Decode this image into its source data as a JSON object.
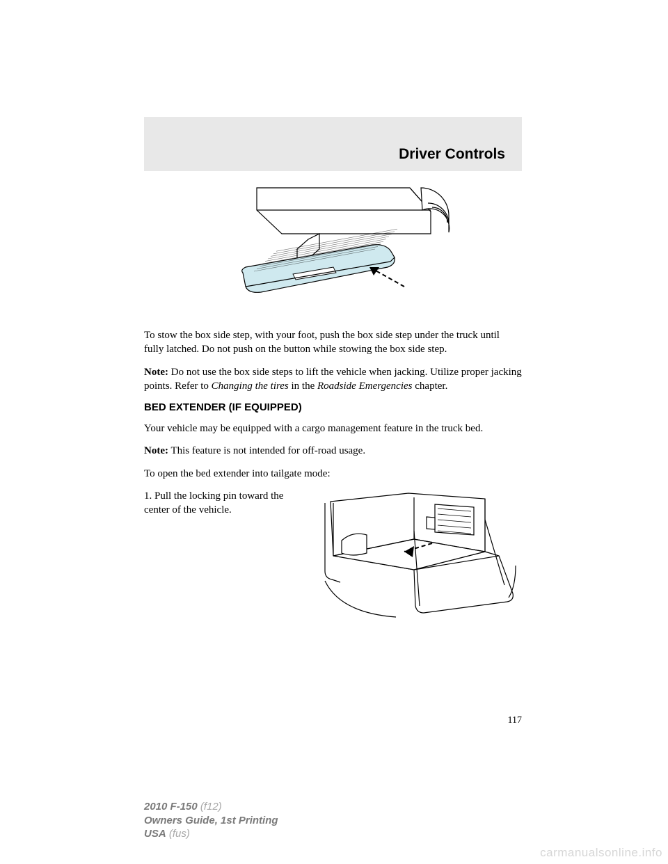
{
  "header": {
    "title": "Driver Controls"
  },
  "body": {
    "p1": "To stow the box side step, with your foot, push the box side step under the truck until fully latched. Do not push on the button while stowing the box side step.",
    "note1_label": "Note:",
    "note1_text": " Do not use the box side steps to lift the vehicle when jacking. Utilize proper jacking points. Refer to ",
    "note1_ref1": "Changing the tires",
    "note1_mid": " in the ",
    "note1_ref2": "Roadside Emergencies",
    "note1_end": " chapter.",
    "section_head": "BED EXTENDER (IF EQUIPPED)",
    "p2": "Your vehicle may be equipped with a cargo management feature in the truck bed.",
    "note2_label": "Note:",
    "note2_text": " This feature is not intended for off-road usage.",
    "p3": "To open the bed extender into tailgate mode:",
    "step1": "1. Pull the locking pin toward the center of the vehicle."
  },
  "figure1": {
    "step_fill": "#cfe9ef",
    "stroke": "#000000",
    "stroke_width": 1.2,
    "arrow_dash": "6 4"
  },
  "figure2": {
    "stroke": "#000000",
    "stroke_width": 1.2,
    "arrow_dash": "6 4"
  },
  "page_number": "117",
  "footer": {
    "model": "2010 F-150",
    "model_code": "(f12)",
    "guide": "Owners Guide, 1st Printing",
    "region": "USA",
    "region_code": "(fus)"
  },
  "watermark": "carmanualsonline.info"
}
